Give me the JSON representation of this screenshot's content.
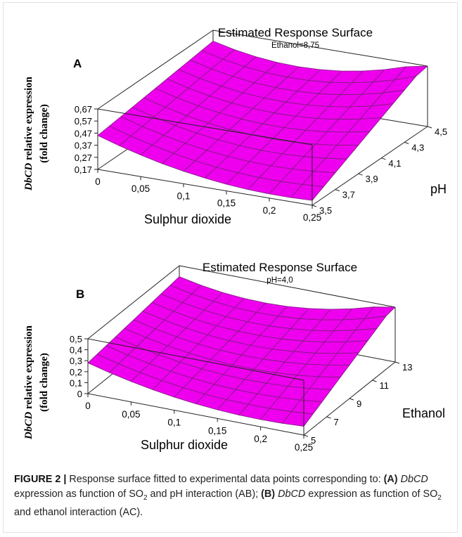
{
  "chart_data": [
    {
      "type": "surface",
      "panel_label": "A",
      "title": "Estimated Response Surface",
      "subtitle": "Ethanol=8,75",
      "xlabel": "Sulphur dioxide",
      "ylabel_italic": "DbCD",
      "ylabel_rest": " relative expression",
      "ylabel_line2": "(fold change)",
      "depth_label": "pH",
      "x_ticks": [
        "0",
        "0,05",
        "0,1",
        "0,15",
        "0,2",
        "0,25"
      ],
      "depth_ticks": [
        "3,5",
        "3,7",
        "3,9",
        "4,1",
        "4,3",
        "4,5"
      ],
      "z_ticks": [
        "0,17",
        "0,27",
        "0,37",
        "0,47",
        "0,57",
        "0,67"
      ],
      "x_range": [
        0,
        0.25
      ],
      "depth_range": [
        3.5,
        4.5
      ],
      "zlim": [
        0.17,
        0.67
      ],
      "surface_color": "#ee00ee",
      "grid_color": "#7a1f7a",
      "corner_values": {
        "x0_dmin": 0.45,
        "x1_dmin": 0.21,
        "x0_dmax": 0.58,
        "x1_dmax": 0.67
      }
    },
    {
      "type": "surface",
      "panel_label": "B",
      "title": "Estimated Response Surface",
      "subtitle": "pH=4,0",
      "xlabel": "Sulphur dioxide",
      "ylabel_italic": "DbCD",
      "ylabel_rest": " relative expression",
      "ylabel_line2": "(fold change)",
      "depth_label": "Ethanol",
      "x_ticks": [
        "0",
        "0,05",
        "0,1",
        "0,15",
        "0,2",
        "0,25"
      ],
      "depth_ticks": [
        "5",
        "7",
        "9",
        "11",
        "13"
      ],
      "z_ticks": [
        "0",
        "0,1",
        "0,2",
        "0,3",
        "0,4",
        "0,5"
      ],
      "x_range": [
        0,
        0.25
      ],
      "depth_range": [
        5,
        13
      ],
      "zlim": [
        0,
        0.5
      ],
      "surface_color": "#ee00ee",
      "grid_color": "#7a1f7a",
      "corner_values": {
        "x0_dmin": 0.28,
        "x1_dmin": 0.08,
        "x0_dmax": 0.4,
        "x1_dmax": 0.5
      }
    }
  ],
  "caption": {
    "figure_label": "FIGURE 2 |",
    "text1": " Response surface fitted to experimental data points corresponding to: ",
    "tagA": "(A)",
    "gene1": "DbCD",
    "text2": " expression as function of SO",
    "sub1": "2",
    "text3": " and pH interaction (AB); ",
    "tagB": "(B)",
    "gene2": "DbCD",
    "text4": " expression as function of SO",
    "sub2": "2",
    "text5": " and ethanol interaction (AC)."
  }
}
